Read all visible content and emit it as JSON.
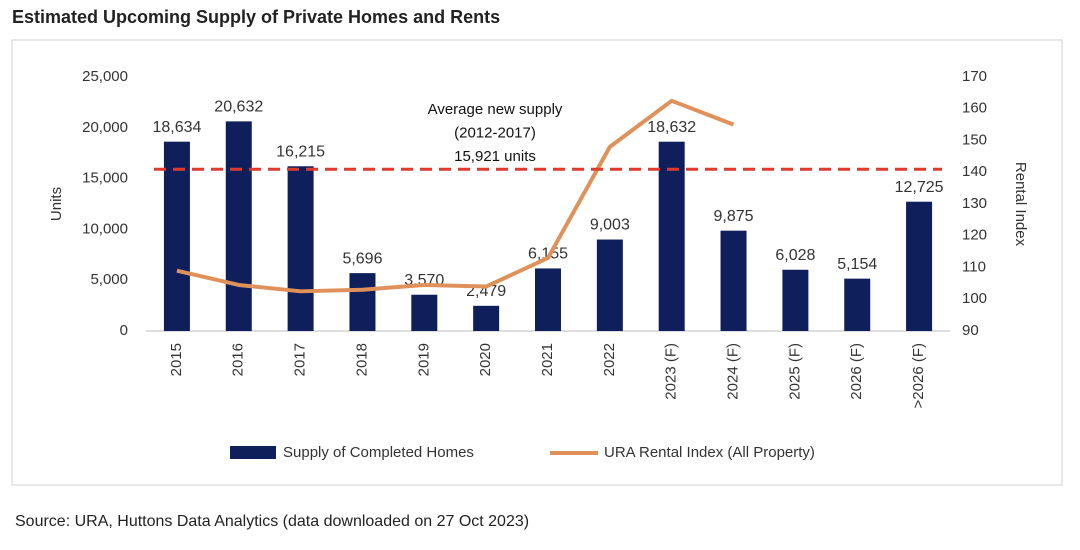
{
  "chart_data": {
    "type": "bar",
    "title": "Estimated Upcoming Supply of Private Homes and Rents",
    "source": "Source: URA, Huttons Data Analytics (data downloaded on 27 Oct 2023)",
    "ylabel": "Units",
    "y2label": "Rental Index",
    "categories": [
      "2015",
      "2016",
      "2017",
      "2018",
      "2019",
      "2020",
      "2021",
      "2022",
      "2023 (F)",
      "2024 (F)",
      "2025 (F)",
      "2026 (F)",
      ">2026 (F)"
    ],
    "series": [
      {
        "name": "Supply of Completed Homes",
        "type": "bar",
        "color": "#0f1f5c",
        "values": [
          18634,
          20632,
          16215,
          5696,
          3570,
          2479,
          6155,
          9003,
          18632,
          9875,
          6028,
          5154,
          12725
        ],
        "value_labels": [
          "18,634",
          "20,632",
          "16,215",
          "5,696",
          "3,570",
          "2,479",
          "6,155",
          "9,003",
          "18,632",
          "9,875",
          "6,028",
          "5,154",
          "12,725"
        ]
      },
      {
        "name": "URA Rental Index (All Property)",
        "type": "line",
        "axis": "y2",
        "color": "#e0915a",
        "values": [
          109,
          104.5,
          102.5,
          103,
          104.5,
          104,
          113,
          148,
          162.5,
          155,
          null,
          null,
          null
        ]
      }
    ],
    "average": {
      "value": 15921,
      "color": "#e03a2f",
      "lines": [
        "Average new supply",
        "(2012-2017)",
        "15,921 units"
      ]
    },
    "ylim": [
      0,
      25000
    ],
    "yticks": [
      0,
      {
        "value": 5000,
        "label": "5,000"
      },
      {
        "value": 10000,
        "label": "10,000"
      },
      {
        "value": 15000,
        "label": "15,000"
      },
      {
        "value": 20000,
        "label": "20,000"
      },
      {
        "value": 25000,
        "label": "25,000"
      }
    ],
    "y2lim": [
      90,
      170
    ],
    "y2ticks": [
      90,
      100,
      110,
      120,
      130,
      140,
      150,
      160,
      170
    ],
    "legend": "bottom"
  }
}
